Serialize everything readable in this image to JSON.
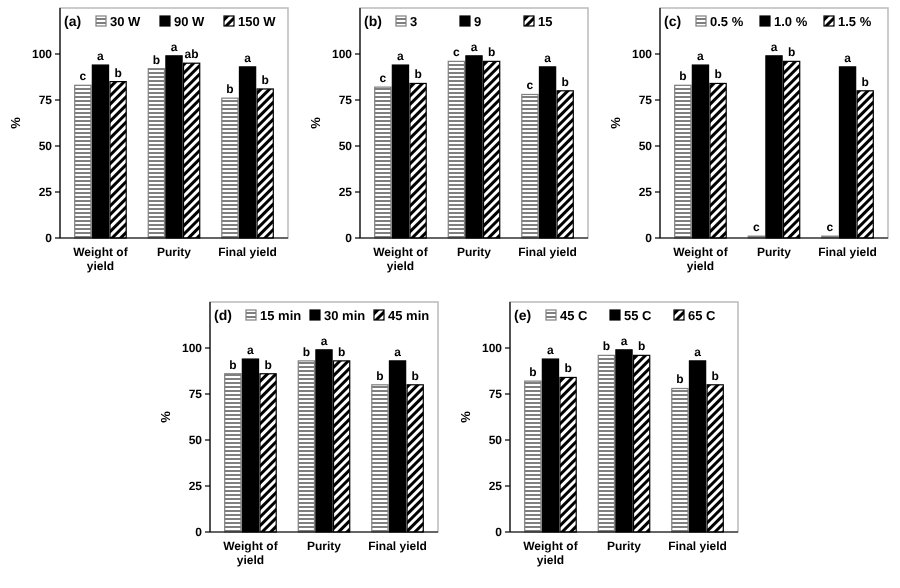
{
  "chart_data": [
    {
      "type": "bar",
      "title": "(a)",
      "ylabel": "%",
      "categories": [
        "Weight of yield",
        "Purity",
        "Final yield"
      ],
      "ylim": [
        0,
        125
      ],
      "yticks": [
        0,
        25,
        50,
        75,
        100
      ],
      "legend": "top",
      "grid": false,
      "series": [
        {
          "name": "30 W",
          "color": "#7f7f7f",
          "values": [
            83,
            92,
            76
          ],
          "value_labels": [
            "c",
            "b",
            "b"
          ]
        },
        {
          "name": "90 W",
          "color": "#000000",
          "values": [
            94,
            99,
            93
          ],
          "value_labels": [
            "a",
            "a",
            "a"
          ]
        },
        {
          "name": "150 W",
          "color": "#000000",
          "values": [
            85,
            95,
            81
          ],
          "value_labels": [
            "b",
            "ab",
            "b"
          ]
        }
      ]
    },
    {
      "type": "bar",
      "title": "(b)",
      "ylabel": "%",
      "categories": [
        "Weight of yield",
        "Purity",
        "Final yield"
      ],
      "ylim": [
        0,
        125
      ],
      "yticks": [
        0,
        25,
        50,
        75,
        100
      ],
      "legend": "top",
      "grid": false,
      "series": [
        {
          "name": "3",
          "color": "#7f7f7f",
          "values": [
            82,
            96,
            78
          ],
          "value_labels": [
            "c",
            "c",
            "c"
          ]
        },
        {
          "name": "9",
          "color": "#000000",
          "values": [
            94,
            99,
            93
          ],
          "value_labels": [
            "a",
            "a",
            "a"
          ]
        },
        {
          "name": "15",
          "color": "#000000",
          "values": [
            84,
            96,
            80
          ],
          "value_labels": [
            "b",
            "b",
            "b"
          ]
        }
      ]
    },
    {
      "type": "bar",
      "title": "(c)",
      "ylabel": "%",
      "categories": [
        "Weight of yield",
        "Purity",
        "Final yield"
      ],
      "ylim": [
        0,
        125
      ],
      "yticks": [
        0,
        25,
        50,
        75,
        100
      ],
      "legend": "top",
      "grid": false,
      "series": [
        {
          "name": "0.5 %",
          "color": "#7f7f7f",
          "values": [
            83,
            1,
            1
          ],
          "value_labels": [
            "b",
            "c",
            "c"
          ]
        },
        {
          "name": "1.0 %",
          "color": "#000000",
          "values": [
            94,
            99,
            93
          ],
          "value_labels": [
            "a",
            "a",
            "a"
          ]
        },
        {
          "name": "1.5 %",
          "color": "#000000",
          "values": [
            84,
            96,
            80
          ],
          "value_labels": [
            "b",
            "b",
            "b"
          ]
        }
      ]
    },
    {
      "type": "bar",
      "title": "(d)",
      "ylabel": "%",
      "categories": [
        "Weight of yield",
        "Purity",
        "Final yield"
      ],
      "ylim": [
        0,
        125
      ],
      "yticks": [
        0,
        25,
        50,
        75,
        100
      ],
      "legend": "top",
      "grid": false,
      "series": [
        {
          "name": "15 min",
          "color": "#7f7f7f",
          "values": [
            86,
            93,
            80
          ],
          "value_labels": [
            "b",
            "b",
            "b"
          ]
        },
        {
          "name": "30 min",
          "color": "#000000",
          "values": [
            94,
            99,
            93
          ],
          "value_labels": [
            "a",
            "a",
            "a"
          ]
        },
        {
          "name": "45 min",
          "color": "#000000",
          "values": [
            86,
            93,
            80
          ],
          "value_labels": [
            "b",
            "b",
            "b"
          ]
        }
      ]
    },
    {
      "type": "bar",
      "title": "(e)",
      "ylabel": "%",
      "categories": [
        "Weight of yield",
        "Purity",
        "Final yield"
      ],
      "ylim": [
        0,
        125
      ],
      "yticks": [
        0,
        25,
        50,
        75,
        100
      ],
      "legend": "top",
      "grid": false,
      "series": [
        {
          "name": "45 C",
          "color": "#7f7f7f",
          "values": [
            82,
            96,
            78
          ],
          "value_labels": [
            "b",
            "b",
            "b"
          ]
        },
        {
          "name": "55 C",
          "color": "#000000",
          "values": [
            94,
            99,
            93
          ],
          "value_labels": [
            "a",
            "a",
            "a"
          ]
        },
        {
          "name": "65 C",
          "color": "#000000",
          "values": [
            84,
            96,
            80
          ],
          "value_labels": [
            "b",
            "b",
            "b"
          ]
        }
      ]
    }
  ]
}
